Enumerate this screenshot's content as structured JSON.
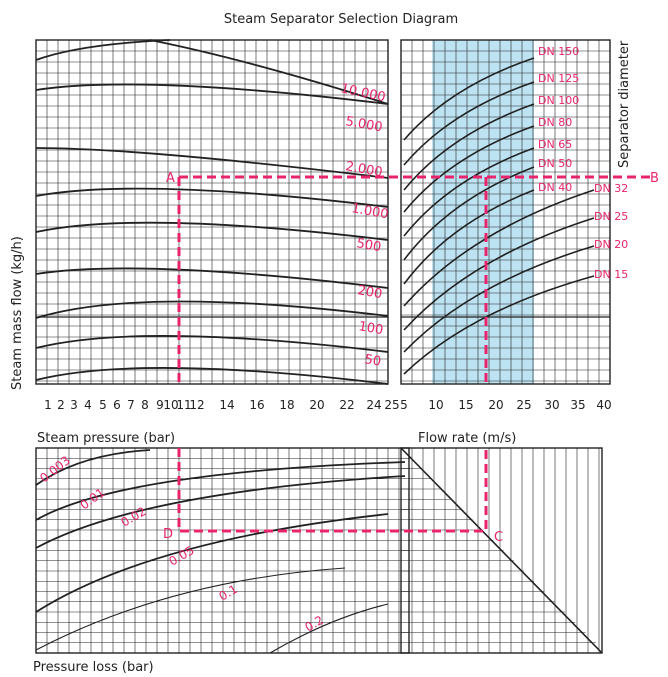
{
  "title": "Steam Separator Selection Diagram",
  "right_label": "Separator diameter",
  "y_label": "Steam mass flow (kg/h)",
  "pressure_label": "Steam pressure (bar)",
  "flowrate_label": "Flow rate (m/s)",
  "loss_label": "Pressure loss (bar)",
  "colors": {
    "accent": "#e8246d",
    "band": "#bde3f3",
    "ink": "#222222"
  },
  "pressure_ticks": [
    "1",
    "2",
    "3",
    "4",
    "5",
    "6",
    "7",
    "8",
    "9",
    "10",
    "11",
    "12",
    "14",
    "16",
    "18",
    "20",
    "22",
    "24",
    "25"
  ],
  "velocity_ticks": [
    "5",
    "10",
    "15",
    "20",
    "25",
    "30",
    "35",
    "40"
  ],
  "flow_curve_labels": [
    "10.000",
    "5.000",
    "2.000",
    "1.000",
    "500",
    "200",
    "100",
    "50"
  ],
  "dn_labels": [
    "DN 150",
    "DN 125",
    "DN 100",
    "DN 80",
    "DN 65",
    "DN 50",
    "DN 40",
    "DN 32",
    "DN 25",
    "DN 20",
    "DN 15"
  ],
  "loss_curve_labels": [
    "0.003",
    "0.01",
    "0.02",
    "0.05",
    "0.1",
    "0.2"
  ],
  "points": {
    "A": "A",
    "B": "B",
    "C": "C",
    "D": "D"
  }
}
